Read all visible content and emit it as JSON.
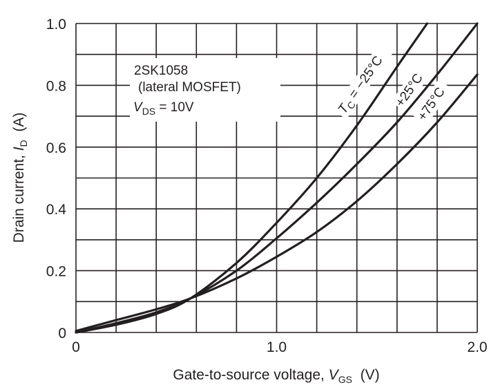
{
  "chart_data": {
    "type": "line",
    "title": "",
    "xlabel": {
      "prefix": "Gate-to-source voltage, ",
      "symbol": "V",
      "subscript": "GS",
      "unit": "  (V)"
    },
    "ylabel": {
      "prefix": "Drain current, ",
      "symbol": "I",
      "subscript": "D",
      "unit": "  (A)"
    },
    "xlim": [
      0,
      2.0
    ],
    "ylim": [
      0,
      1.0
    ],
    "x_ticks": [
      {
        "value": 0,
        "label": "0"
      },
      {
        "value": 1.0,
        "label": "1.0"
      },
      {
        "value": 2.0,
        "label": "2.0"
      }
    ],
    "y_ticks": [
      {
        "value": 0,
        "label": "0"
      },
      {
        "value": 0.2,
        "label": "0.2"
      },
      {
        "value": 0.4,
        "label": "0.4"
      },
      {
        "value": 0.6,
        "label": "0.6"
      },
      {
        "value": 0.8,
        "label": "0.8"
      },
      {
        "value": 1.0,
        "label": "1.0"
      }
    ],
    "grid": true,
    "annotation": {
      "device": "2SK1058",
      "device_type": "(lateral MOSFET)",
      "vds_symbol": "V",
      "vds_subscript": "DS",
      "vds_value": " = 10V"
    },
    "series": [
      {
        "name": "−25°C",
        "label_prefix": "T",
        "label_subscript": "C",
        "label_text": " = −25°C",
        "x": [
          0,
          0.2,
          0.4,
          0.57,
          0.8,
          1.0,
          1.2,
          1.4,
          1.6,
          1.75
        ],
        "y": [
          0,
          0.025,
          0.06,
          0.11,
          0.225,
          0.355,
          0.5,
          0.67,
          0.86,
          1.0
        ]
      },
      {
        "name": "+25°C",
        "label_prefix": "",
        "label_subscript": "",
        "label_text": "+25°C",
        "x": [
          0,
          0.2,
          0.4,
          0.57,
          0.8,
          1.0,
          1.2,
          1.4,
          1.6,
          1.8,
          2.0
        ],
        "y": [
          0,
          0.03,
          0.065,
          0.11,
          0.2,
          0.305,
          0.42,
          0.545,
          0.68,
          0.835,
          1.0
        ]
      },
      {
        "name": "+75°C",
        "label_prefix": "",
        "label_subscript": "",
        "label_text": "+75°C",
        "x": [
          0,
          0.2,
          0.4,
          0.57,
          0.8,
          1.0,
          1.2,
          1.4,
          1.6,
          1.8,
          2.0
        ],
        "y": [
          0.005,
          0.04,
          0.075,
          0.11,
          0.175,
          0.245,
          0.325,
          0.425,
          0.545,
          0.68,
          0.835
        ]
      }
    ]
  }
}
